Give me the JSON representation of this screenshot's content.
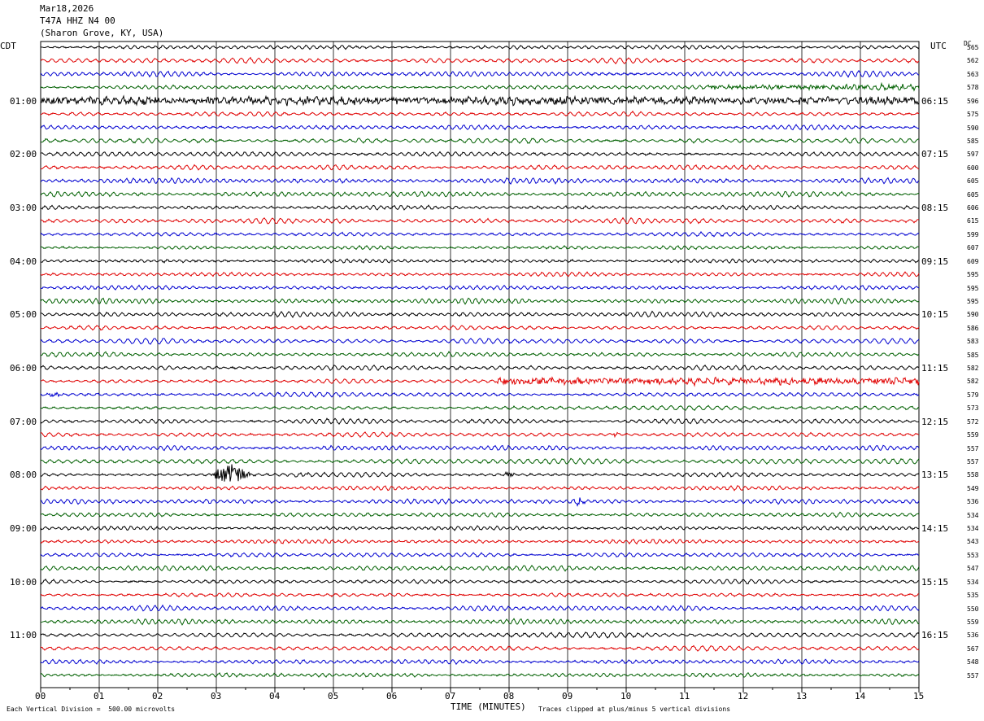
{
  "header": {
    "date": "Mar18,2026",
    "station": "T47A HHZ N4 00",
    "location": "(Sharon Grove, KY, USA)"
  },
  "labels": {
    "left_tz": "CDT",
    "right_tz": "UTC",
    "dc_header": "DC"
  },
  "footer": {
    "scale_note": "Each Vertical Division =  500.00 microvolts",
    "xlabel": "TIME (MINUTES)",
    "clip_note": "Traces clipped at plus/minus 5 vertical divisions"
  },
  "chart_data": {
    "type": "seismogram",
    "x_range": [
      0,
      15
    ],
    "x_ticks": [
      "00",
      "01",
      "02",
      "03",
      "04",
      "05",
      "06",
      "07",
      "08",
      "09",
      "10",
      "11",
      "12",
      "13",
      "14",
      "15"
    ],
    "xlabel": "TIME (MINUTES)",
    "trace_colors": [
      "#000000",
      "#e00000",
      "#0000d0",
      "#006000"
    ],
    "left_time_labels": [
      "01:00",
      "02:00",
      "03:00",
      "04:00",
      "05:00",
      "06:00",
      "07:00",
      "08:00",
      "09:00",
      "10:00",
      "11:00"
    ],
    "right_time_labels": [
      "06:15",
      "07:15",
      "08:15",
      "09:15",
      "10:15",
      "11:15",
      "12:15",
      "13:15",
      "14:15",
      "15:15",
      "16:15"
    ],
    "dc_offsets": [
      "565",
      "562",
      "563",
      "578",
      "596",
      "575",
      "590",
      "585",
      "597",
      "600",
      "605",
      "605",
      "606",
      "615",
      "599",
      "607",
      "609",
      "595",
      "595",
      "595",
      "590",
      "586",
      "583",
      "585",
      "582",
      "582",
      "579",
      "573",
      "572",
      "559",
      "557",
      "557",
      "558",
      "549",
      "536",
      "534",
      "534",
      "543",
      "553",
      "547",
      "534",
      "535",
      "550",
      "559",
      "536",
      "567",
      "548",
      "557"
    ],
    "events": [
      {
        "trace": 3,
        "start_min": 11.4,
        "end_min": 15.0,
        "amp": 0.6
      },
      {
        "trace": 4,
        "start_min": 0.0,
        "end_min": 15.0,
        "amp": 0.9
      },
      {
        "trace": 7,
        "start_min": 5.3,
        "end_min": 5.5,
        "amp": 0.5
      },
      {
        "trace": 25,
        "start_min": 7.8,
        "end_min": 15.0,
        "amp": 0.8
      },
      {
        "trace": 26,
        "start_min": 0.1,
        "end_min": 0.4,
        "amp": 0.6
      },
      {
        "trace": 29,
        "start_min": 9.7,
        "end_min": 9.9,
        "amp": 0.7
      },
      {
        "trace": 32,
        "start_min": 2.9,
        "end_min": 3.6,
        "amp": 3.2
      },
      {
        "trace": 32,
        "start_min": 4.3,
        "end_min": 4.6,
        "amp": 0.7
      },
      {
        "trace": 32,
        "start_min": 7.9,
        "end_min": 8.1,
        "amp": 0.8
      },
      {
        "trace": 34,
        "start_min": 9.1,
        "end_min": 9.3,
        "amp": 0.9
      }
    ]
  }
}
